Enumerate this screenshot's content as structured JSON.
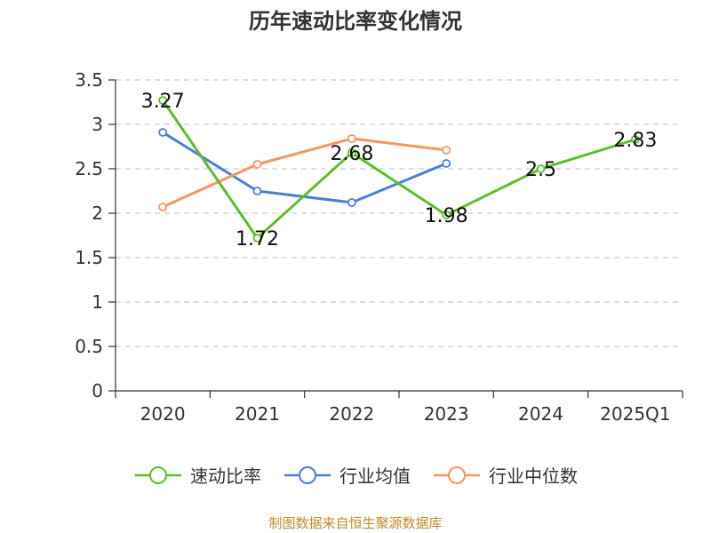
{
  "chart_data": {
    "type": "line",
    "title": "历年速动比率变化情况",
    "categories": [
      "2020",
      "2021",
      "2022",
      "2023",
      "2024",
      "2025Q1"
    ],
    "ylim": [
      0,
      3.5
    ],
    "yticks": [
      "0",
      "0.5",
      "1",
      "1.5",
      "2",
      "2.5",
      "3",
      "3.5"
    ],
    "grid": true,
    "legend_position": "bottom",
    "series": [
      {
        "name": "速动比率",
        "color": "#5cbf2a",
        "values": [
          3.27,
          1.72,
          2.68,
          1.98,
          2.5,
          2.83
        ],
        "labels": [
          "3.27",
          "1.72",
          "2.68",
          "1.98",
          "2.5",
          "2.83"
        ]
      },
      {
        "name": "行业均值",
        "color": "#4a7fdc",
        "values": [
          2.91,
          2.25,
          2.12,
          2.56,
          null,
          null
        ],
        "labels": []
      },
      {
        "name": "行业中位数",
        "color": "#f79563",
        "values": [
          2.07,
          2.55,
          2.84,
          2.71,
          null,
          null
        ],
        "labels": []
      }
    ]
  },
  "source_note": "制图数据来自恒生聚源数据库"
}
